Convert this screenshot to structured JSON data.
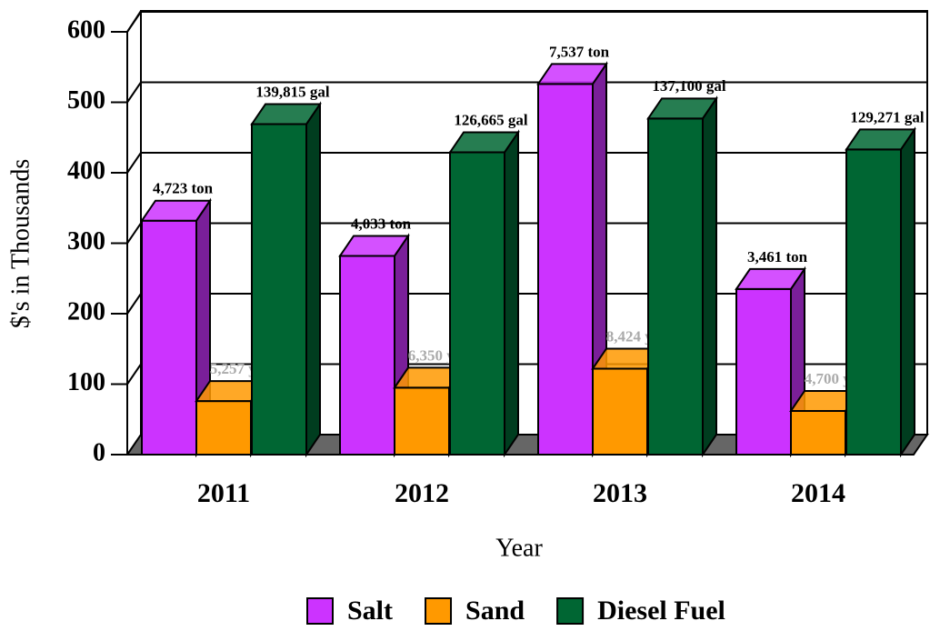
{
  "chart_data": {
    "type": "bar3d",
    "y_label": "$'s in Thousands",
    "x_label": "Year",
    "categories": [
      "2011",
      "2012",
      "2013",
      "2014"
    ],
    "series": [
      {
        "name": "Salt",
        "color": "#cc33ff",
        "values": [
          332,
          282,
          526,
          235
        ],
        "labels": [
          "4,723 ton",
          "4,033 ton",
          "7,537 ton",
          "3,461 ton"
        ]
      },
      {
        "name": "Sand",
        "color": "#ff9900",
        "values": [
          76,
          95,
          122,
          62
        ],
        "labels": [
          "5,257 yd",
          "6,350 yd",
          "8,424 yd",
          "4,700 yd"
        ]
      },
      {
        "name": "Diesel Fuel",
        "color": "#006633",
        "values": [
          469,
          429,
          477,
          433
        ],
        "labels": [
          "139,815 gal",
          "126,665 gal",
          "137,100 gal",
          "129,271 gal"
        ]
      }
    ],
    "ylim": [
      0,
      600
    ],
    "yticks": [
      0,
      100,
      200,
      300,
      400,
      500,
      600
    ],
    "grid": true
  }
}
